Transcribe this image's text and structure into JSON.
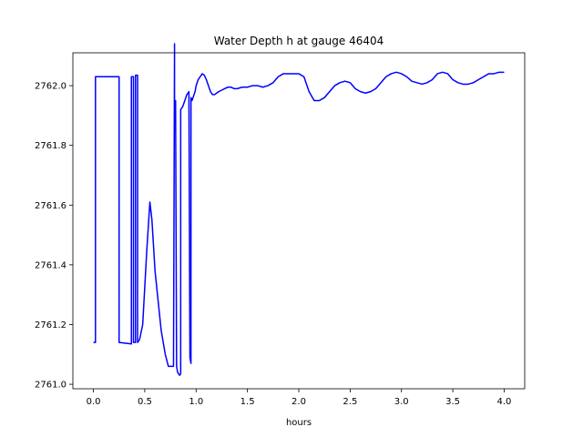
{
  "chart_data": {
    "type": "line",
    "title": "Water Depth h at gauge 46404",
    "xlabel": "hours",
    "ylabel": "",
    "xlim": [
      -0.2,
      4.2
    ],
    "ylim": [
      2760.985,
      2762.11
    ],
    "xticks": [
      {
        "value": 0.0,
        "label": "0.0"
      },
      {
        "value": 0.5,
        "label": "0.5"
      },
      {
        "value": 1.0,
        "label": "1.0"
      },
      {
        "value": 1.5,
        "label": "1.5"
      },
      {
        "value": 2.0,
        "label": "2.0"
      },
      {
        "value": 2.5,
        "label": "2.5"
      },
      {
        "value": 3.0,
        "label": "3.0"
      },
      {
        "value": 3.5,
        "label": "3.5"
      },
      {
        "value": 4.0,
        "label": "4.0"
      }
    ],
    "yticks": [
      {
        "value": 2761.0,
        "label": "2761.0"
      },
      {
        "value": 2761.2,
        "label": "2761.2"
      },
      {
        "value": 2761.4,
        "label": "2761.4"
      },
      {
        "value": 2761.6,
        "label": "2761.6"
      },
      {
        "value": 2761.8,
        "label": "2761.8"
      },
      {
        "value": 2762.0,
        "label": "2762.0"
      }
    ],
    "grid": false,
    "series": [
      {
        "color": "#0000ff",
        "x": [
          0.0,
          0.02,
          0.02,
          0.25,
          0.25,
          0.37,
          0.37,
          0.39,
          0.39,
          0.41,
          0.41,
          0.43,
          0.43,
          0.45,
          0.48,
          0.52,
          0.55,
          0.57,
          0.6,
          0.63,
          0.66,
          0.7,
          0.73,
          0.76,
          0.78,
          0.79,
          0.79,
          0.8,
          0.81,
          0.82,
          0.84,
          0.85,
          0.85,
          0.87,
          0.89,
          0.91,
          0.93,
          0.94,
          0.95,
          0.95,
          0.96,
          0.97,
          0.97,
          0.98,
          0.99,
          1.0,
          1.02,
          1.04,
          1.06,
          1.08,
          1.1,
          1.12,
          1.14,
          1.16,
          1.18,
          1.2,
          1.22,
          1.25,
          1.28,
          1.31,
          1.34,
          1.37,
          1.4,
          1.45,
          1.5,
          1.55,
          1.6,
          1.65,
          1.7,
          1.75,
          1.8,
          1.85,
          1.9,
          1.95,
          2.0,
          2.05,
          2.1,
          2.15,
          2.2,
          2.25,
          2.3,
          2.35,
          2.4,
          2.45,
          2.5,
          2.55,
          2.6,
          2.65,
          2.7,
          2.75,
          2.8,
          2.85,
          2.9,
          2.95,
          3.0,
          3.05,
          3.1,
          3.15,
          3.2,
          3.25,
          3.3,
          3.35,
          3.4,
          3.45,
          3.5,
          3.55,
          3.6,
          3.65,
          3.7,
          3.75,
          3.8,
          3.85,
          3.9,
          3.95,
          4.0
        ],
        "y": [
          2761.14,
          2761.14,
          2762.03,
          2762.03,
          2761.14,
          2761.135,
          2762.03,
          2762.03,
          2761.14,
          2761.14,
          2762.035,
          2762.035,
          2761.14,
          2761.15,
          2761.2,
          2761.45,
          2761.61,
          2761.55,
          2761.38,
          2761.28,
          2761.18,
          2761.1,
          2761.06,
          2761.06,
          2761.06,
          2762.14,
          2761.95,
          2761.95,
          2761.06,
          2761.04,
          2761.03,
          2761.035,
          2761.92,
          2761.93,
          2761.95,
          2761.97,
          2761.98,
          2761.09,
          2761.07,
          2761.96,
          2761.95,
          2761.96,
          2761.96,
          2761.97,
          2761.98,
          2762.0,
          2762.02,
          2762.03,
          2762.04,
          2762.035,
          2762.02,
          2762.0,
          2761.98,
          2761.97,
          2761.97,
          2761.975,
          2761.98,
          2761.985,
          2761.99,
          2761.995,
          2761.995,
          2761.99,
          2761.99,
          2761.995,
          2761.995,
          2762.0,
          2762.0,
          2761.995,
          2762.0,
          2762.01,
          2762.03,
          2762.04,
          2762.04,
          2762.04,
          2762.04,
          2762.03,
          2761.98,
          2761.95,
          2761.95,
          2761.96,
          2761.98,
          2762.0,
          2762.01,
          2762.015,
          2762.01,
          2761.99,
          2761.98,
          2761.975,
          2761.98,
          2761.99,
          2762.01,
          2762.03,
          2762.04,
          2762.045,
          2762.04,
          2762.03,
          2762.015,
          2762.01,
          2762.005,
          2762.01,
          2762.02,
          2762.04,
          2762.045,
          2762.04,
          2762.02,
          2762.01,
          2762.005,
          2762.005,
          2762.01,
          2762.02,
          2762.03,
          2762.04,
          2762.04,
          2762.045,
          2762.045
        ]
      }
    ]
  }
}
